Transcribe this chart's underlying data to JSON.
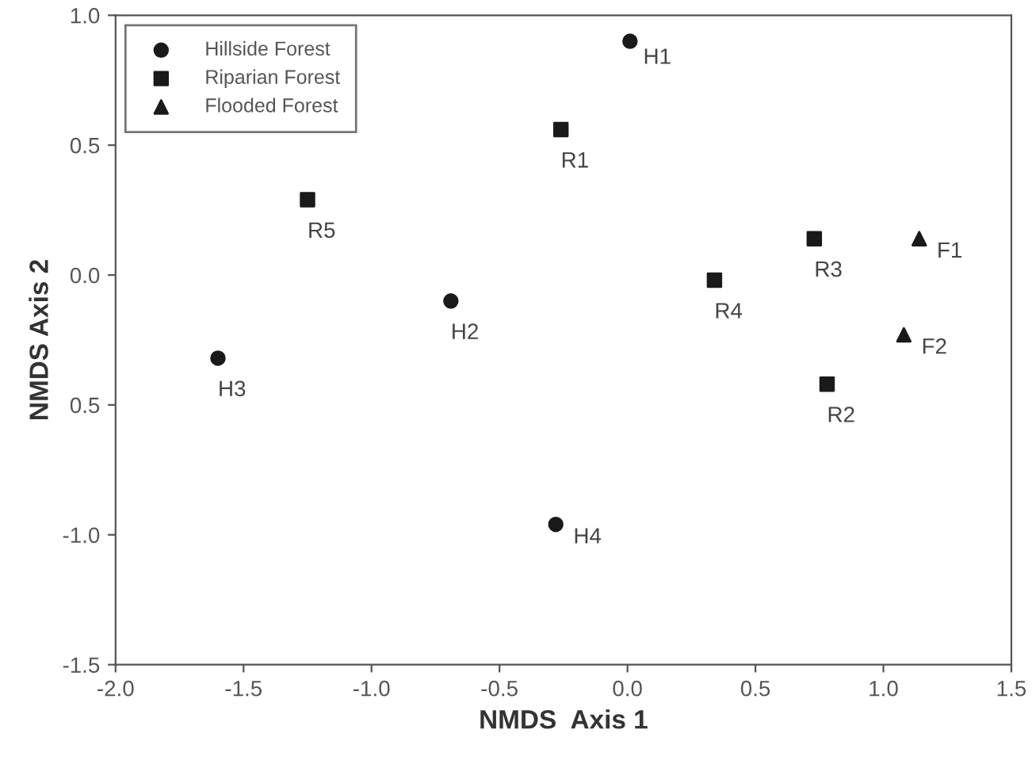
{
  "chart_data": {
    "type": "scatter",
    "xlabel": "NMDS  Axis 1",
    "ylabel": "NMDS Axis 2",
    "xlim": [
      -2.0,
      1.5
    ],
    "xticks": [
      {
        "value": -2.0,
        "label": "-2.0"
      },
      {
        "value": -1.5,
        "label": "-1.5"
      },
      {
        "value": -1.0,
        "label": "-1.0"
      },
      {
        "value": -0.5,
        "label": "-0.5"
      },
      {
        "value": 0.0,
        "label": "0.0"
      },
      {
        "value": 0.5,
        "label": "0.5"
      },
      {
        "value": 1.0,
        "label": "1.0"
      },
      {
        "value": 1.5,
        "label": "1.5"
      }
    ],
    "ylim": [
      -1.5,
      1.0
    ],
    "yticks": [
      {
        "value": -1.5,
        "label": "-1.5"
      },
      {
        "value": -1.0,
        "label": "-1.0"
      },
      {
        "value": -0.5,
        "label": "0.5"
      },
      {
        "value": 0.0,
        "label": "0.0"
      },
      {
        "value": 0.5,
        "label": "0.5"
      },
      {
        "value": 1.0,
        "label": "1.0"
      }
    ],
    "grid": false,
    "legend": "top left",
    "series": [
      {
        "name": "Hillside Forest",
        "color": "#1a1a1a",
        "marker": "circle",
        "x": [
          0.01,
          -0.69,
          -1.6,
          -0.28
        ],
        "values": [
          0.9,
          -0.1,
          -0.32,
          -0.96
        ]
      },
      {
        "name": "Riparian Forest",
        "color": "#1a1a1a",
        "marker": "square",
        "x": [
          -0.26,
          0.78,
          0.73,
          0.34,
          -1.25
        ],
        "values": [
          0.56,
          -0.42,
          0.14,
          -0.02,
          0.29
        ]
      },
      {
        "name": "Flooded Forest",
        "color": "#1a1a1a",
        "marker": "triangle",
        "x": [
          1.14,
          1.08
        ],
        "values": [
          0.14,
          -0.23
        ]
      }
    ],
    "annotations": [
      {
        "text": "H1",
        "x": 0.01,
        "y": 0.9
      },
      {
        "text": "H2",
        "x": -0.69,
        "y": -0.1
      },
      {
        "text": "H3",
        "x": -1.6,
        "y": -0.32
      },
      {
        "text": "H4",
        "x": -0.28,
        "y": -0.96
      },
      {
        "text": "R1",
        "x": -0.26,
        "y": 0.56
      },
      {
        "text": "R2",
        "x": 0.78,
        "y": -0.42
      },
      {
        "text": "R3",
        "x": 0.73,
        "y": 0.14
      },
      {
        "text": "R4",
        "x": 0.34,
        "y": -0.02
      },
      {
        "text": "R5",
        "x": -1.25,
        "y": 0.29
      },
      {
        "text": "F1",
        "x": 1.14,
        "y": 0.14
      },
      {
        "text": "F2",
        "x": 1.08,
        "y": -0.23
      }
    ]
  }
}
